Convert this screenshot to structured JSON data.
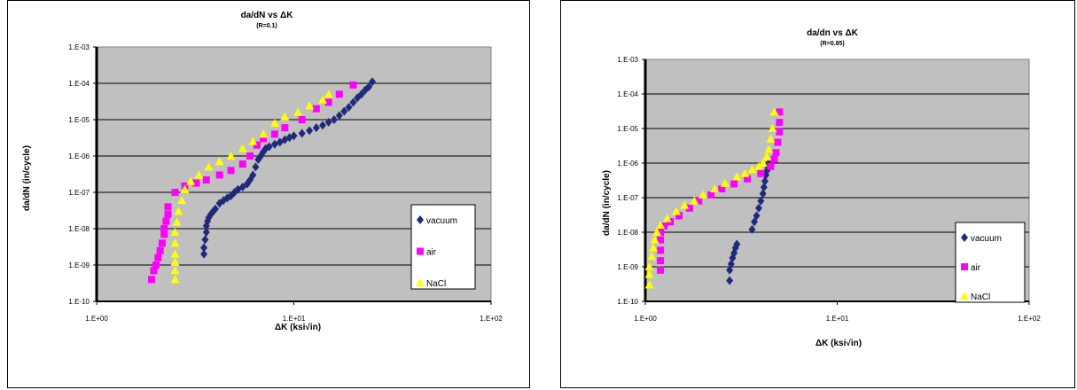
{
  "colors": {
    "plot_bg": "#c0c0c0",
    "vacuum": "#1f2a7a",
    "air": "#ff00ff",
    "NaCl": "#ffff00",
    "grid": "#000000"
  },
  "chart_data": [
    {
      "type": "scatter",
      "title": "da/dN vs ΔK",
      "subtitle": "(R=0.1)",
      "xlabel": "ΔK (ksi√in)",
      "ylabel": "da/dN (in/cycle)",
      "x_scale": "log",
      "y_scale": "log",
      "xlim": [
        1,
        100
      ],
      "ylim": [
        1e-10,
        0.001
      ],
      "x_ticks": [
        "1.E+00",
        "1.E+01",
        "1.E+02"
      ],
      "y_ticks": [
        "1.E-10",
        "1.E-09",
        "1.E-08",
        "1.E-07",
        "1.E-06",
        "1.E-05",
        "1.E-04",
        "1.E-03"
      ],
      "grid": "horizontal",
      "legend": "right",
      "series": [
        {
          "name": "vacuum",
          "marker": "diamond",
          "x": [
            3.5,
            3.5,
            3.55,
            3.6,
            3.6,
            3.65,
            3.7,
            3.8,
            3.9,
            4.0,
            4.2,
            4.4,
            4.6,
            4.8,
            5.0,
            5.2,
            5.5,
            5.8,
            6.0,
            6.2,
            6.4,
            6.6,
            6.8,
            7.0,
            7.2,
            7.5,
            8.0,
            8.5,
            9.0,
            9.5,
            10,
            11,
            12,
            13,
            14,
            15,
            16,
            17,
            18,
            19,
            20,
            21,
            22,
            23,
            24,
            25
          ],
          "y": [
            2e-09,
            3e-09,
            5e-09,
            8e-09,
            1.2e-08,
            1.6e-08,
            2e-08,
            2.5e-08,
            3e-08,
            3.5e-08,
            5e-08,
            6e-08,
            7e-08,
            8e-08,
            1e-07,
            1.2e-07,
            1.4e-07,
            1.7e-07,
            2.2e-07,
            3e-07,
            5e-07,
            8e-07,
            1e-06,
            1.3e-06,
            1.6e-06,
            1.8e-06,
            2.1e-06,
            2.4e-06,
            2.8e-06,
            3.2e-06,
            3.6e-06,
            4.2e-06,
            5e-06,
            6e-06,
            7e-06,
            8.5e-06,
            1e-05,
            1.3e-05,
            1.7e-05,
            2.2e-05,
            3e-05,
            4e-05,
            5e-05,
            6.5e-05,
            8e-05,
            0.00011
          ]
        },
        {
          "name": "air",
          "marker": "square",
          "x": [
            1.9,
            1.95,
            2.0,
            2.05,
            2.1,
            2.15,
            2.2,
            2.2,
            2.25,
            2.3,
            2.3,
            2.5,
            2.8,
            3.2,
            3.6,
            4.2,
            4.8,
            5.5,
            6.0,
            6.5,
            7.0,
            8.0,
            9.0,
            11,
            13,
            15,
            17,
            20
          ],
          "y": [
            4e-10,
            7e-10,
            1e-09,
            1.6e-09,
            2.5e-09,
            4e-09,
            7e-09,
            1e-08,
            1.6e-08,
            2.5e-08,
            4e-08,
            1e-07,
            1.5e-07,
            1.8e-07,
            2.2e-07,
            3e-07,
            4e-07,
            6e-07,
            1e-06,
            2e-06,
            3e-06,
            4e-06,
            6e-06,
            1e-05,
            2e-05,
            3e-05,
            5e-05,
            9e-05
          ]
        },
        {
          "name": "NaCl",
          "marker": "triangle",
          "x": [
            2.5,
            2.5,
            2.5,
            2.5,
            2.5,
            2.5,
            2.55,
            2.6,
            2.7,
            2.8,
            3.0,
            3.3,
            3.7,
            4.2,
            4.8,
            5.5,
            6.2,
            7.0,
            8.0,
            9.0,
            10.5,
            12,
            14,
            15
          ],
          "y": [
            4e-10,
            7e-10,
            1.2e-09,
            2e-09,
            4e-09,
            8e-09,
            1.5e-08,
            3e-08,
            6e-08,
            1.2e-07,
            2e-07,
            3e-07,
            5e-07,
            7e-07,
            1e-06,
            1.6e-06,
            2.5e-06,
            4e-06,
            8e-06,
            1.2e-05,
            1.6e-05,
            2.4e-05,
            3.5e-05,
            5e-05
          ]
        }
      ]
    },
    {
      "type": "scatter",
      "title": "da/dn vs ΔK",
      "subtitle": "(R=0.85)",
      "xlabel": "ΔK (ksi√in)",
      "ylabel": "da/dN (in/cycle)",
      "x_scale": "log",
      "y_scale": "log",
      "xlim": [
        1,
        100
      ],
      "ylim": [
        1e-10,
        0.001
      ],
      "x_ticks": [
        "1.E+00",
        "1.E+01",
        "1.E+02"
      ],
      "y_ticks": [
        "1.E-10",
        "1.E-09",
        "1.E-08",
        "1.E-07",
        "1.E-06",
        "1.E-05",
        "1.E-04",
        "1.E-03"
      ],
      "grid": "horizontal",
      "legend": "right",
      "series": [
        {
          "name": "vacuum",
          "marker": "diamond",
          "x": [
            2.75,
            2.75,
            2.8,
            2.85,
            2.9,
            2.95,
            3.0,
            3.6,
            3.7,
            3.8,
            3.9,
            4.0,
            4.1,
            4.15,
            4.2,
            4.25,
            4.3,
            4.35,
            4.4
          ],
          "y": [
            4e-10,
            8e-10,
            1.2e-09,
            1.8e-09,
            2.5e-09,
            3.5e-09,
            4.5e-09,
            1.2e-08,
            2e-08,
            3e-08,
            5e-08,
            8e-08,
            1.3e-07,
            2e-07,
            3e-07,
            4.5e-07,
            6e-07,
            8e-07,
            1e-06
          ]
        },
        {
          "name": "air",
          "marker": "square",
          "x": [
            1.2,
            1.2,
            1.2,
            1.2,
            1.2,
            1.25,
            1.35,
            1.5,
            1.7,
            1.9,
            2.2,
            2.5,
            2.9,
            3.4,
            4.0,
            4.5,
            4.7,
            4.8,
            4.9,
            5.0,
            5.0,
            5.0
          ],
          "y": [
            8e-10,
            1.5e-09,
            3e-09,
            6e-09,
            1e-08,
            1.5e-08,
            2e-08,
            3e-08,
            5e-08,
            8e-08,
            1.2e-07,
            1.8e-07,
            2.5e-07,
            3.5e-07,
            5e-07,
            8e-07,
            1.3e-06,
            2e-06,
            4e-06,
            8e-06,
            1.5e-05,
            3e-05
          ]
        },
        {
          "name": "NaCl",
          "marker": "triangle",
          "x": [
            1.05,
            1.05,
            1.05,
            1.08,
            1.1,
            1.12,
            1.15,
            1.2,
            1.3,
            1.45,
            1.6,
            1.8,
            2.0,
            2.3,
            2.6,
            3.0,
            3.3,
            3.6,
            3.9,
            4.1,
            4.3,
            4.4,
            4.5,
            4.6,
            4.7
          ],
          "y": [
            3e-10,
            6e-10,
            1e-09,
            2e-09,
            3.5e-09,
            6e-09,
            1e-08,
            1.6e-08,
            2.5e-08,
            4e-08,
            6e-08,
            8e-08,
            1.2e-07,
            1.8e-07,
            2.6e-07,
            4e-07,
            5e-07,
            6.5e-07,
            8e-07,
            1e-06,
            1.5e-06,
            2.5e-06,
            5e-06,
            1e-05,
            3e-05
          ]
        }
      ]
    }
  ]
}
